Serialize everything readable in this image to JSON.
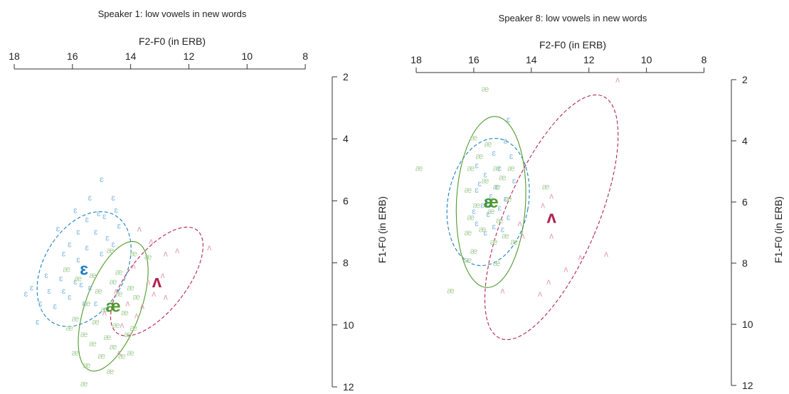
{
  "chart_data": [
    {
      "type": "scatter",
      "title": "Speaker 1: low vowels in new words",
      "xlabel": "F2-F0 (in ERB)",
      "ylabel": "F1-F0 (in ERB)",
      "xlim": [
        18,
        7
      ],
      "ylim": [
        2,
        12
      ],
      "x_reversed": true,
      "y_reversed": true,
      "x_ticks": [
        "18",
        "16",
        "14",
        "12",
        "10",
        "8"
      ],
      "y_ticks": [
        "2",
        "4",
        "6",
        "8",
        "10",
        "12"
      ],
      "legend": "none",
      "series": [
        {
          "name": "ɛ",
          "color": "#7fb8e0",
          "mean_color": "#1a7fc0",
          "line_style": "dashed",
          "mean": [
            15.6,
            8.2
          ],
          "ellipse": {
            "center": [
              15.6,
              8.2
            ],
            "rx": 1.4,
            "ry": 2.0,
            "angle_deg": 30
          },
          "points": [
            [
              15.0,
              5.3
            ],
            [
              15.4,
              5.9
            ],
            [
              14.6,
              5.9
            ],
            [
              15.9,
              6.3
            ],
            [
              15.1,
              6.4
            ],
            [
              14.5,
              6.3
            ],
            [
              15.5,
              6.6
            ],
            [
              14.9,
              6.5
            ],
            [
              14.4,
              6.8
            ],
            [
              16.5,
              6.9
            ],
            [
              15.8,
              7.0
            ],
            [
              15.2,
              7.0
            ],
            [
              14.8,
              7.2
            ],
            [
              16.1,
              7.4
            ],
            [
              15.5,
              7.5
            ],
            [
              14.6,
              7.4
            ],
            [
              16.3,
              7.7
            ],
            [
              15.8,
              7.9
            ],
            [
              15.0,
              7.7
            ],
            [
              16.9,
              8.4
            ],
            [
              16.4,
              8.5
            ],
            [
              15.9,
              8.6
            ],
            [
              15.4,
              8.8
            ],
            [
              17.4,
              8.8
            ],
            [
              16.8,
              8.9
            ],
            [
              16.1,
              9.1
            ],
            [
              15.6,
              9.3
            ],
            [
              17.1,
              9.3
            ],
            [
              16.6,
              9.4
            ],
            [
              15.2,
              9.3
            ],
            [
              17.6,
              9.0
            ],
            [
              16.3,
              8.9
            ],
            [
              15.7,
              8.7
            ],
            [
              17.2,
              9.9
            ]
          ]
        },
        {
          "name": "æ",
          "color": "#a8d09a",
          "mean_color": "#4e9a2c",
          "line_style": "solid",
          "mean": [
            14.6,
            9.4
          ],
          "ellipse": {
            "center": [
              14.6,
              9.4
            ],
            "rx": 0.95,
            "ry": 2.2,
            "angle_deg": 20
          },
          "points": [
            [
              14.7,
              7.6
            ],
            [
              13.9,
              7.7
            ],
            [
              16.2,
              8.2
            ],
            [
              15.8,
              8.5
            ],
            [
              15.3,
              8.4
            ],
            [
              14.6,
              8.6
            ],
            [
              14.0,
              8.8
            ],
            [
              15.1,
              8.9
            ],
            [
              14.4,
              9.0
            ],
            [
              13.8,
              9.1
            ],
            [
              15.5,
              9.3
            ],
            [
              14.9,
              9.5
            ],
            [
              14.2,
              9.6
            ],
            [
              15.9,
              9.8
            ],
            [
              15.2,
              9.9
            ],
            [
              14.5,
              10.0
            ],
            [
              13.9,
              10.1
            ],
            [
              16.1,
              10.1
            ],
            [
              15.6,
              10.3
            ],
            [
              14.8,
              10.4
            ],
            [
              14.1,
              10.3
            ],
            [
              15.3,
              10.6
            ],
            [
              14.6,
              10.7
            ],
            [
              15.9,
              10.9
            ],
            [
              15.0,
              11.0
            ],
            [
              14.3,
              11.0
            ],
            [
              15.5,
              11.3
            ],
            [
              14.7,
              11.5
            ],
            [
              14.0,
              10.9
            ],
            [
              13.4,
              7.8
            ],
            [
              14.4,
              8.3
            ],
            [
              15.6,
              11.9
            ]
          ]
        },
        {
          "name": "ʌ",
          "color": "#e29cb4",
          "mean_color": "#b0244f",
          "line_style": "dashed",
          "mean": [
            13.1,
            8.6
          ],
          "ellipse": {
            "center": [
              13.1,
              8.6
            ],
            "rx": 1.0,
            "ry": 2.1,
            "angle_deg": 38
          },
          "points": [
            [
              13.7,
              6.9
            ],
            [
              13.3,
              7.3
            ],
            [
              12.8,
              7.7
            ],
            [
              12.4,
              7.6
            ],
            [
              11.3,
              7.5
            ],
            [
              13.9,
              8.1
            ],
            [
              12.9,
              8.4
            ],
            [
              13.4,
              8.6
            ],
            [
              14.5,
              8.9
            ],
            [
              13.2,
              9.0
            ],
            [
              12.8,
              9.1
            ],
            [
              14.1,
              9.3
            ],
            [
              13.6,
              9.4
            ],
            [
              14.9,
              9.6
            ],
            [
              13.8,
              9.7
            ],
            [
              14.3,
              10.0
            ],
            [
              14.4,
              10.9
            ]
          ]
        }
      ]
    },
    {
      "type": "scatter",
      "title": "Speaker 8: low vowels in new words",
      "xlabel": "F2-F0 (in ERB)",
      "ylabel": "F1-F0 (in ERB)",
      "xlim": [
        18,
        7
      ],
      "ylim": [
        2,
        12
      ],
      "x_reversed": true,
      "y_reversed": true,
      "x_ticks": [
        "18",
        "16",
        "14",
        "12",
        "10",
        "8"
      ],
      "y_ticks": [
        "2",
        "4",
        "6",
        "8",
        "10",
        "12"
      ],
      "legend": "none",
      "series": [
        {
          "name": "ɛ",
          "color": "#7fb8e0",
          "mean_color": "#1a7fc0",
          "line_style": "dashed",
          "mean": [
            15.5,
            6.0
          ],
          "ellipse": {
            "center": [
              15.5,
              6.0
            ],
            "rx": 1.4,
            "ry": 2.1,
            "angle_deg": 10
          },
          "points": [
            [
              14.8,
              3.3
            ],
            [
              14.9,
              4.0
            ],
            [
              15.3,
              4.4
            ],
            [
              14.7,
              4.5
            ],
            [
              15.9,
              4.8
            ],
            [
              15.1,
              4.9
            ],
            [
              15.6,
              5.1
            ],
            [
              14.6,
              5.3
            ],
            [
              15.2,
              5.5
            ],
            [
              15.9,
              5.6
            ],
            [
              15.4,
              5.8
            ],
            [
              14.9,
              5.9
            ],
            [
              15.7,
              6.1
            ],
            [
              15.1,
              6.2
            ],
            [
              15.5,
              6.4
            ],
            [
              14.8,
              6.5
            ],
            [
              15.9,
              6.7
            ],
            [
              15.3,
              6.8
            ],
            [
              15.6,
              7.0
            ],
            [
              15.0,
              6.9
            ],
            [
              16.0,
              6.3
            ],
            [
              15.8,
              5.4
            ]
          ]
        },
        {
          "name": "æ",
          "color": "#a8d09a",
          "mean_color": "#4e9a2c",
          "line_style": "solid",
          "mean": [
            15.4,
            6.0
          ],
          "ellipse": {
            "center": [
              15.4,
              6.0
            ],
            "rx": 1.2,
            "ry": 2.8,
            "angle_deg": 3
          },
          "points": [
            [
              15.6,
              2.3
            ],
            [
              16.0,
              3.9
            ],
            [
              15.5,
              4.1
            ],
            [
              17.9,
              4.9
            ],
            [
              15.8,
              4.5
            ],
            [
              16.1,
              4.9
            ],
            [
              15.2,
              4.9
            ],
            [
              14.7,
              4.9
            ],
            [
              15.6,
              5.3
            ],
            [
              15.2,
              5.5
            ],
            [
              16.2,
              5.6
            ],
            [
              14.8,
              5.9
            ],
            [
              15.9,
              6.1
            ],
            [
              15.4,
              6.3
            ],
            [
              16.1,
              6.5
            ],
            [
              15.1,
              6.6
            ],
            [
              15.7,
              6.9
            ],
            [
              14.9,
              7.1
            ],
            [
              15.3,
              7.3
            ],
            [
              14.6,
              7.3
            ],
            [
              16.2,
              7.0
            ],
            [
              16.0,
              7.6
            ],
            [
              16.2,
              7.9
            ],
            [
              15.2,
              8.0
            ],
            [
              16.8,
              8.9
            ],
            [
              13.5,
              5.5
            ],
            [
              15.0,
              5.2
            ]
          ]
        },
        {
          "name": "ʌ",
          "color": "#e29cb4",
          "mean_color": "#b0244f",
          "line_style": "dashed",
          "mean": [
            13.3,
            6.5
          ],
          "ellipse": {
            "center": [
              13.3,
              6.5
            ],
            "rx": 1.6,
            "ry": 4.3,
            "angle_deg": 23
          },
          "points": [
            [
              11.0,
              2.0
            ],
            [
              13.3,
              5.8
            ],
            [
              13.6,
              6.1
            ],
            [
              14.4,
              6.7
            ],
            [
              14.3,
              7.1
            ],
            [
              13.3,
              7.1
            ],
            [
              12.3,
              7.8
            ],
            [
              12.8,
              8.2
            ],
            [
              11.4,
              7.7
            ],
            [
              13.4,
              8.6
            ],
            [
              13.7,
              9.0
            ],
            [
              15.0,
              8.9
            ]
          ]
        }
      ]
    }
  ]
}
